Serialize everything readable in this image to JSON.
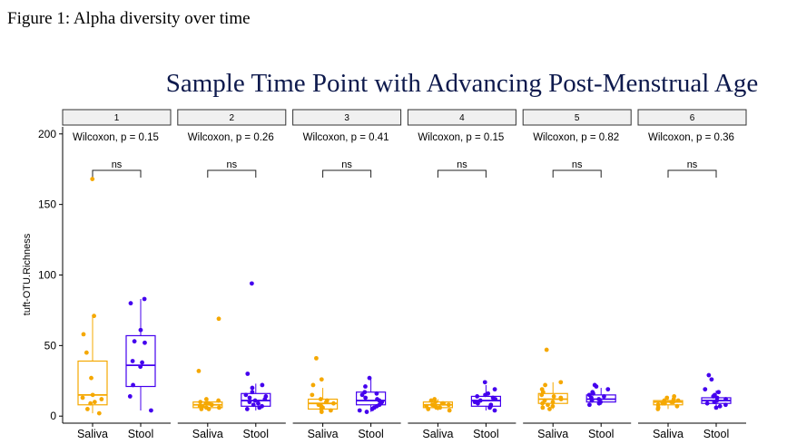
{
  "figure_caption": "Figure 1: Alpha diversity over time",
  "colors": {
    "saliva": "#f5a800",
    "stool": "#4400ee",
    "title": "#0e1a4d",
    "strip_fill": "#f0f0f0",
    "axis": "#000000"
  },
  "chart_data": {
    "type": "box",
    "title": "Sample Time Point with Advancing Post-Menstrual Age",
    "ylabel": "tuft-OTU.Richness",
    "xlabel": "",
    "ylim": [
      -5,
      205
    ],
    "yticks": [
      0,
      50,
      100,
      150,
      200
    ],
    "categories": [
      "Saliva",
      "Stool"
    ],
    "grid": false,
    "legend": "none",
    "facets": [
      {
        "label": "1",
        "test_label": "Wilcoxon, p = 0.15",
        "signif": "ns",
        "groups": [
          {
            "name": "Saliva",
            "box": {
              "min": 2,
              "q1": 8,
              "median": 15,
              "q3": 39,
              "max": 71
            },
            "points": [
              168,
              71,
              58,
              45,
              27,
              15,
              13,
              12,
              10,
              9,
              5,
              2
            ]
          },
          {
            "name": "Stool",
            "box": {
              "min": 4,
              "q1": 21,
              "median": 36,
              "q3": 57,
              "max": 83
            },
            "points": [
              83,
              80,
              61,
              53,
              52,
              39,
              38,
              35,
              22,
              14,
              4
            ]
          }
        ]
      },
      {
        "label": "2",
        "test_label": "Wilcoxon, p = 0.26",
        "signif": "ns",
        "groups": [
          {
            "name": "Saliva",
            "box": {
              "min": 5,
              "q1": 6,
              "median": 8,
              "q3": 10,
              "max": 12
            },
            "points": [
              69,
              32,
              12,
              11,
              10,
              9,
              9,
              8,
              7,
              7,
              6,
              6,
              5,
              5
            ]
          },
          {
            "name": "Stool",
            "box": {
              "min": 4,
              "q1": 7,
              "median": 11,
              "q3": 16,
              "max": 23
            },
            "points": [
              94,
              30,
              22,
              20,
              17,
              15,
              14,
              13,
              12,
              11,
              10,
              9,
              8,
              7,
              6,
              5
            ]
          }
        ]
      },
      {
        "label": "3",
        "test_label": "Wilcoxon, p = 0.41",
        "signif": "ns",
        "groups": [
          {
            "name": "Saliva",
            "box": {
              "min": 3,
              "q1": 5,
              "median": 9,
              "q3": 12,
              "max": 20
            },
            "points": [
              41,
              26,
              22,
              15,
              12,
              11,
              10,
              9,
              8,
              7,
              6,
              5,
              4,
              3
            ]
          },
          {
            "name": "Stool",
            "box": {
              "min": 3,
              "q1": 8,
              "median": 11,
              "q3": 17,
              "max": 27
            },
            "points": [
              27,
              21,
              17,
              16,
              15,
              13,
              12,
              11,
              10,
              9,
              8,
              7,
              6,
              5,
              4,
              3
            ]
          }
        ]
      },
      {
        "label": "4",
        "test_label": "Wilcoxon, p = 0.15",
        "signif": "ns",
        "groups": [
          {
            "name": "Saliva",
            "box": {
              "min": 4,
              "q1": 6,
              "median": 8,
              "q3": 10,
              "max": 12
            },
            "points": [
              12,
              11,
              10,
              9,
              9,
              8,
              8,
              7,
              7,
              6,
              6,
              5,
              4
            ]
          },
          {
            "name": "Stool",
            "box": {
              "min": 4,
              "q1": 7,
              "median": 11,
              "q3": 14,
              "max": 22
            },
            "points": [
              24,
              19,
              16,
              15,
              14,
              13,
              12,
              11,
              10,
              9,
              8,
              7,
              6,
              4
            ]
          }
        ]
      },
      {
        "label": "5",
        "test_label": "Wilcoxon, p = 0.82",
        "signif": "ns",
        "groups": [
          {
            "name": "Saliva",
            "box": {
              "min": 5,
              "q1": 9,
              "median": 12,
              "q3": 16,
              "max": 24
            },
            "points": [
              47,
              24,
              22,
              19,
              17,
              15,
              14,
              13,
              12,
              11,
              10,
              9,
              8,
              7,
              6,
              5
            ]
          },
          {
            "name": "Stool",
            "box": {
              "min": 8,
              "q1": 10,
              "median": 12,
              "q3": 15,
              "max": 20
            },
            "points": [
              22,
              21,
              19,
              17,
              16,
              15,
              14,
              13,
              12,
              11,
              10,
              9,
              8
            ]
          }
        ]
      },
      {
        "label": "6",
        "test_label": "Wilcoxon, p = 0.36",
        "signif": "ns",
        "groups": [
          {
            "name": "Saliva",
            "box": {
              "min": 5,
              "q1": 8,
              "median": 10,
              "q3": 11,
              "max": 14
            },
            "points": [
              14,
              13,
              12,
              11,
              11,
              10,
              10,
              9,
              9,
              8,
              7,
              6,
              5
            ]
          },
          {
            "name": "Stool",
            "box": {
              "min": 6,
              "q1": 9,
              "median": 11,
              "q3": 13,
              "max": 18
            },
            "points": [
              29,
              26,
              19,
              17,
              15,
              14,
              13,
              12,
              11,
              10,
              9,
              8,
              7,
              6
            ]
          }
        ]
      }
    ]
  }
}
